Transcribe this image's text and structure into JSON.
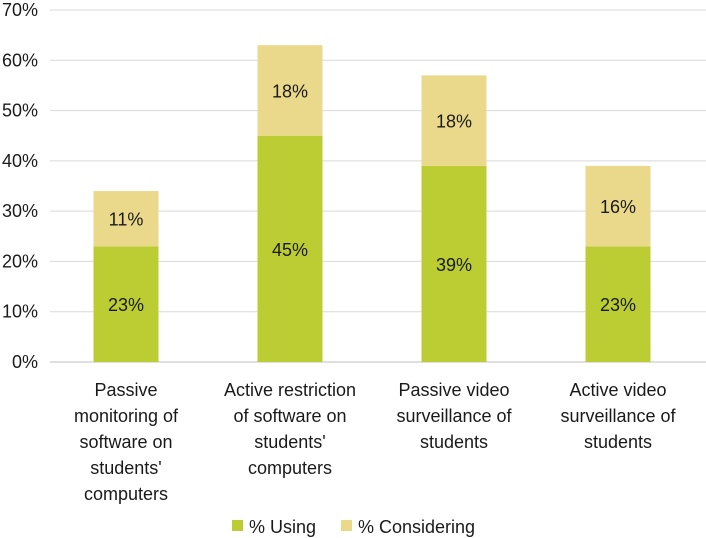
{
  "chart_data": {
    "type": "bar",
    "stacked": true,
    "categories": [
      [
        "Passive",
        "monitoring of",
        "software on",
        "students'",
        "computers"
      ],
      [
        "Active restriction",
        "of software on",
        "students'",
        "computers"
      ],
      [
        "Passive video",
        "surveillance of",
        "students"
      ],
      [
        "Active video",
        "surveillance of",
        "students"
      ]
    ],
    "series": [
      {
        "name": "% Using",
        "values": [
          23,
          45,
          39,
          23
        ],
        "labels": [
          "23%",
          "45%",
          "39%",
          "23%"
        ],
        "color": "#BBCD33"
      },
      {
        "name": "% Considering",
        "values": [
          11,
          18,
          18,
          16
        ],
        "labels": [
          "11%",
          "18%",
          "18%",
          "16%"
        ],
        "color": "#EBD98B"
      }
    ],
    "ylim": [
      0,
      70
    ],
    "yticks": [
      "0%",
      "10%",
      "20%",
      "30%",
      "40%",
      "50%",
      "60%",
      "70%"
    ],
    "grid": true,
    "legend": "bottom",
    "gridColor": "#d9d9d9"
  }
}
